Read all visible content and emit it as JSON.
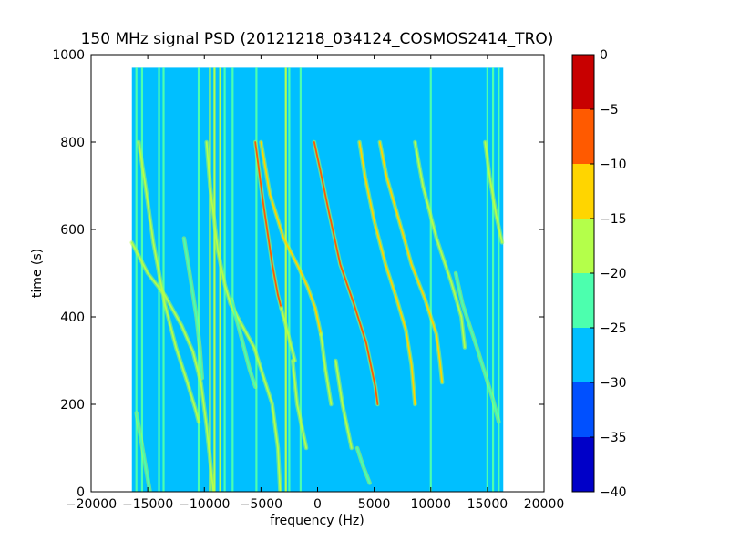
{
  "chart_data": {
    "type": "heatmap",
    "title": "150 MHz signal PSD (20121218_034124_COSMOS2414_TRO)",
    "xlabel": "frequency (Hz)",
    "ylabel": "time (s)",
    "xlim": [
      -20000,
      20000
    ],
    "ylim": [
      0,
      1000
    ],
    "xticks": [
      -20000,
      -15000,
      -10000,
      -5000,
      0,
      5000,
      10000,
      15000,
      20000
    ],
    "xtick_labels": [
      "−20000",
      "−15000",
      "−10000",
      "−5000",
      "0",
      "5000",
      "10000",
      "15000",
      "20000"
    ],
    "yticks": [
      0,
      200,
      400,
      600,
      800,
      1000
    ],
    "ytick_labels": [
      "0",
      "200",
      "400",
      "600",
      "800",
      "1000"
    ],
    "data_extent": {
      "freq_min": -16400,
      "freq_max": 16400,
      "time_min": 0,
      "time_max": 970
    },
    "background_level": "-30 to -25",
    "colorbar": {
      "levels": [
        -40,
        -35,
        -30,
        -25,
        -20,
        -15,
        -10,
        -5,
        0
      ],
      "tick_labels": [
        "−40",
        "−35",
        "−30",
        "−25",
        "−20",
        "−15",
        "−10",
        "−5",
        "0"
      ],
      "colors": [
        "#0000c8",
        "#0050ff",
        "#00bfff",
        "#4cffae",
        "#b4ff4a",
        "#ffd500",
        "#ff5a00",
        "#c80000"
      ]
    },
    "vertical_lines": [
      {
        "freq": -16000,
        "level": "-25 to -20"
      },
      {
        "freq": -15500,
        "level": "-25 to -20"
      },
      {
        "freq": -14000,
        "level": "-25 to -20"
      },
      {
        "freq": -13600,
        "level": "-25 to -20"
      },
      {
        "freq": -10500,
        "level": "-25 to -20"
      },
      {
        "freq": -9500,
        "level": "-20 to -15"
      },
      {
        "freq": -9100,
        "level": "-20 to -15"
      },
      {
        "freq": -8600,
        "level": "-20 to -15"
      },
      {
        "freq": -8200,
        "level": "-25 to -20"
      },
      {
        "freq": -7500,
        "level": "-25 to -20"
      },
      {
        "freq": -5400,
        "level": "-25 to -20"
      },
      {
        "freq": -2800,
        "level": "-20 to -15"
      },
      {
        "freq": -2500,
        "level": "-25 to -20"
      },
      {
        "freq": -1500,
        "level": "-25 to -20"
      },
      {
        "freq": 10000,
        "level": "-25 to -20"
      },
      {
        "freq": 15000,
        "level": "-25 to -20"
      },
      {
        "freq": 15500,
        "level": "-25 to -20"
      },
      {
        "freq": 16000,
        "level": "-25 to -20"
      }
    ],
    "doppler_tracks": [
      {
        "freq_points": [
          -9800,
          -9500,
          -8800,
          -8200,
          -7700,
          -5600,
          -4000,
          -3500,
          -3300
        ],
        "time_points": [
          800,
          700,
          550,
          475,
          430,
          330,
          200,
          100,
          0
        ],
        "level": "-20 to -15"
      },
      {
        "freq_points": [
          -5500,
          -4800,
          -4000,
          -3500,
          -3200
        ],
        "time_points": [
          800,
          660,
          520,
          450,
          420
        ],
        "level": "-10 to -5"
      },
      {
        "freq_points": [
          -3200,
          -2800,
          -2500,
          -2000
        ],
        "time_points": [
          420,
          380,
          350,
          300
        ],
        "level": "-20 to -15"
      },
      {
        "freq_points": [
          -5000,
          -4200,
          -3000,
          -1800,
          -900,
          -200,
          300
        ],
        "time_points": [
          800,
          680,
          580,
          520,
          470,
          420,
          360
        ],
        "level": "-15 to -10"
      },
      {
        "freq_points": [
          300,
          700,
          1200
        ],
        "time_points": [
          360,
          280,
          200
        ],
        "level": "-20 to -15"
      },
      {
        "freq_points": [
          -300,
          200,
          1000,
          2000,
          3200,
          4300,
          5100,
          5300
        ],
        "time_points": [
          800,
          740,
          640,
          520,
          430,
          340,
          240,
          200
        ],
        "level": "-10 to -5"
      },
      {
        "freq_points": [
          3700,
          4200,
          5000,
          6000,
          7000,
          7800,
          8300,
          8600
        ],
        "time_points": [
          800,
          720,
          620,
          520,
          440,
          370,
          290,
          200
        ],
        "level": "-15 to -10"
      },
      {
        "freq_points": [
          1600,
          2200,
          3000
        ],
        "time_points": [
          300,
          200,
          100
        ],
        "level": "-20 to -15"
      },
      {
        "freq_points": [
          -2200,
          -1800,
          -1000
        ],
        "time_points": [
          300,
          200,
          100
        ],
        "level": "-20 to -15"
      },
      {
        "freq_points": [
          5500,
          6100,
          7200,
          8300,
          9500,
          10500,
          10800,
          11000
        ],
        "time_points": [
          800,
          720,
          620,
          520,
          440,
          360,
          300,
          250
        ],
        "level": "-15 to -10"
      },
      {
        "freq_points": [
          8600,
          9300,
          10500,
          11800,
          12700,
          13000
        ],
        "time_points": [
          800,
          700,
          580,
          480,
          400,
          330
        ],
        "level": "-20 to -15"
      },
      {
        "freq_points": [
          12200,
          12800,
          14200,
          15500,
          16000
        ],
        "time_points": [
          500,
          430,
          320,
          210,
          160
        ],
        "level": "-25 to -20"
      },
      {
        "freq_points": [
          -15800,
          -15200,
          -14500,
          -13500,
          -12500,
          -11500,
          -10800,
          -10500
        ],
        "time_points": [
          800,
          700,
          570,
          430,
          330,
          250,
          190,
          160
        ],
        "level": "-20 to -15"
      },
      {
        "freq_points": [
          -16400,
          -15000,
          -13500,
          -12000,
          -11000,
          -10300,
          -9800,
          -9400,
          -9200
        ],
        "time_points": [
          570,
          500,
          450,
          380,
          320,
          250,
          150,
          50,
          0
        ],
        "level": "-20 to -15"
      },
      {
        "freq_points": [
          -11800,
          -11300,
          -10700,
          -10400,
          -10200
        ],
        "time_points": [
          580,
          500,
          400,
          330,
          260
        ],
        "level": "-25 to -20"
      },
      {
        "freq_points": [
          -7600,
          -7200,
          -6600,
          -6000,
          -5500
        ],
        "time_points": [
          440,
          400,
          340,
          280,
          240
        ],
        "level": "-25 to -20"
      },
      {
        "freq_points": [
          -16000,
          -15600,
          -15200,
          -14800
        ],
        "time_points": [
          180,
          120,
          60,
          0
        ],
        "level": "-25 to -20"
      },
      {
        "freq_points": [
          14800,
          15200,
          15800,
          16300
        ],
        "time_points": [
          800,
          720,
          630,
          570
        ],
        "level": "-20 to -15"
      },
      {
        "freq_points": [
          3500,
          4000,
          4600
        ],
        "time_points": [
          100,
          60,
          20
        ],
        "level": "-25 to -20"
      }
    ]
  }
}
